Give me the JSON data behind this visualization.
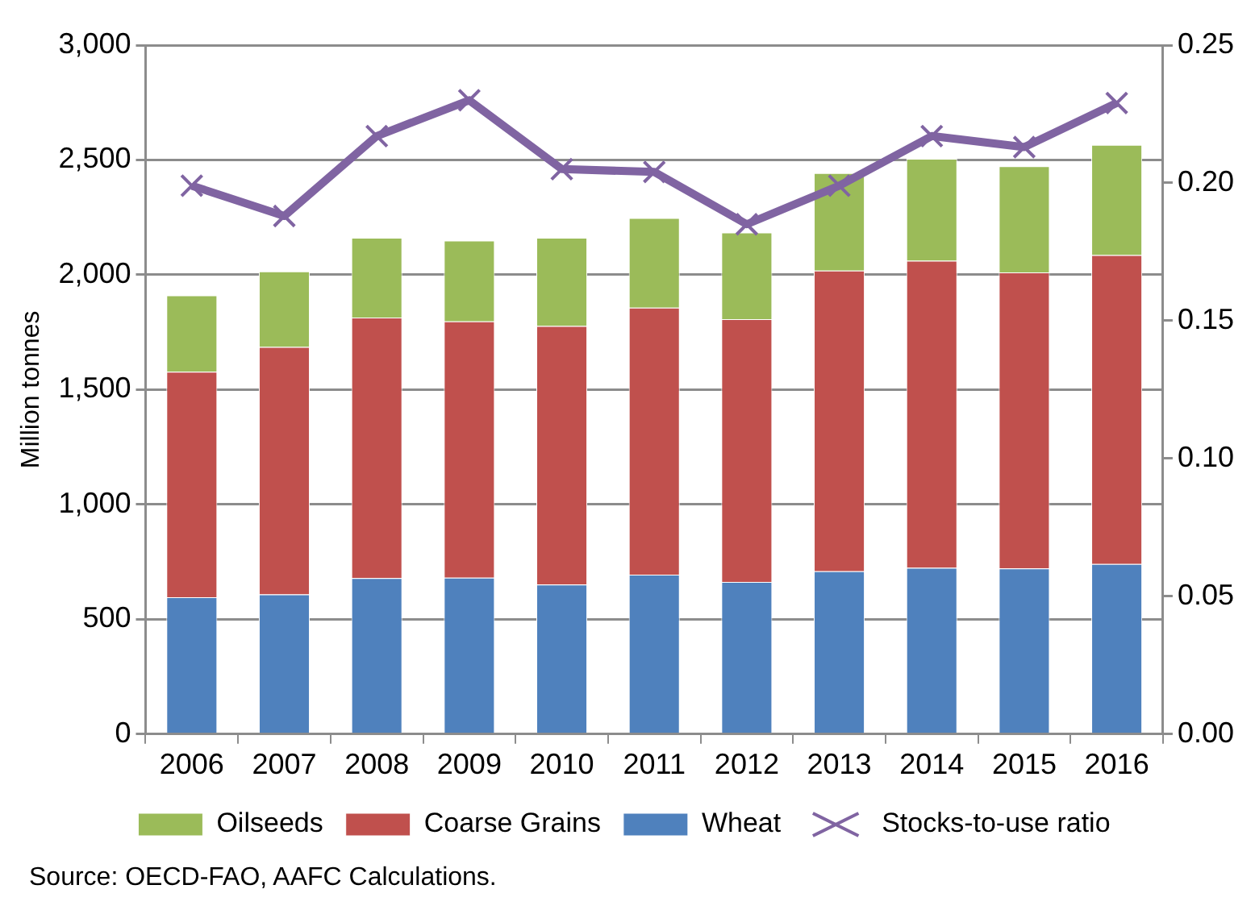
{
  "chart_data": {
    "type": "bar",
    "stacked": true,
    "ylabel": "Million tonnes",
    "categories": [
      "2006",
      "2007",
      "2008",
      "2009",
      "2010",
      "2011",
      "2012",
      "2013",
      "2014",
      "2015",
      "2016"
    ],
    "series": [
      {
        "name": "Wheat",
        "color": "#4f81bd",
        "values": [
          596,
          608,
          679,
          681,
          651,
          694,
          663,
          709,
          724,
          721,
          741
        ]
      },
      {
        "name": "Coarse Grains",
        "color": "#c0504d",
        "values": [
          982,
          1078,
          1135,
          1116,
          1126,
          1163,
          1144,
          1309,
          1337,
          1289,
          1345
        ]
      },
      {
        "name": "Oilseeds",
        "color": "#9bbb59",
        "values": [
          332,
          329,
          347,
          352,
          384,
          390,
          377,
          425,
          444,
          463,
          480
        ]
      },
      {
        "name": "Stocks-to-use ratio",
        "type": "line",
        "axis": "y2",
        "color": "#8064a2",
        "marker": "cross",
        "values": [
          0.199,
          0.188,
          0.217,
          0.23,
          0.205,
          0.204,
          0.185,
          0.199,
          0.217,
          0.213,
          0.229
        ]
      }
    ],
    "ylim": [
      0,
      3000
    ],
    "yticks": [
      {
        "value": 0,
        "label": "0"
      },
      {
        "value": 500,
        "label": "500"
      },
      {
        "value": 1000,
        "label": "1,000"
      },
      {
        "value": 1500,
        "label": "1,500"
      },
      {
        "value": 2000,
        "label": "2,000"
      },
      {
        "value": 2500,
        "label": "2,500"
      },
      {
        "value": 3000,
        "label": "3,000"
      }
    ],
    "y2lim": [
      0,
      0.25
    ],
    "y2ticks": [
      {
        "value": 0,
        "label": "0.00"
      },
      {
        "value": 0.05,
        "label": "0.05"
      },
      {
        "value": 0.1,
        "label": "0.10"
      },
      {
        "value": 0.15,
        "label": "0.15"
      },
      {
        "value": 0.2,
        "label": "0.20"
      },
      {
        "value": 0.25,
        "label": "0.25"
      }
    ],
    "grid": "y",
    "legend": "bottom",
    "annotations": [
      "Source: OECD-FAO, AAFC Calculations."
    ]
  }
}
